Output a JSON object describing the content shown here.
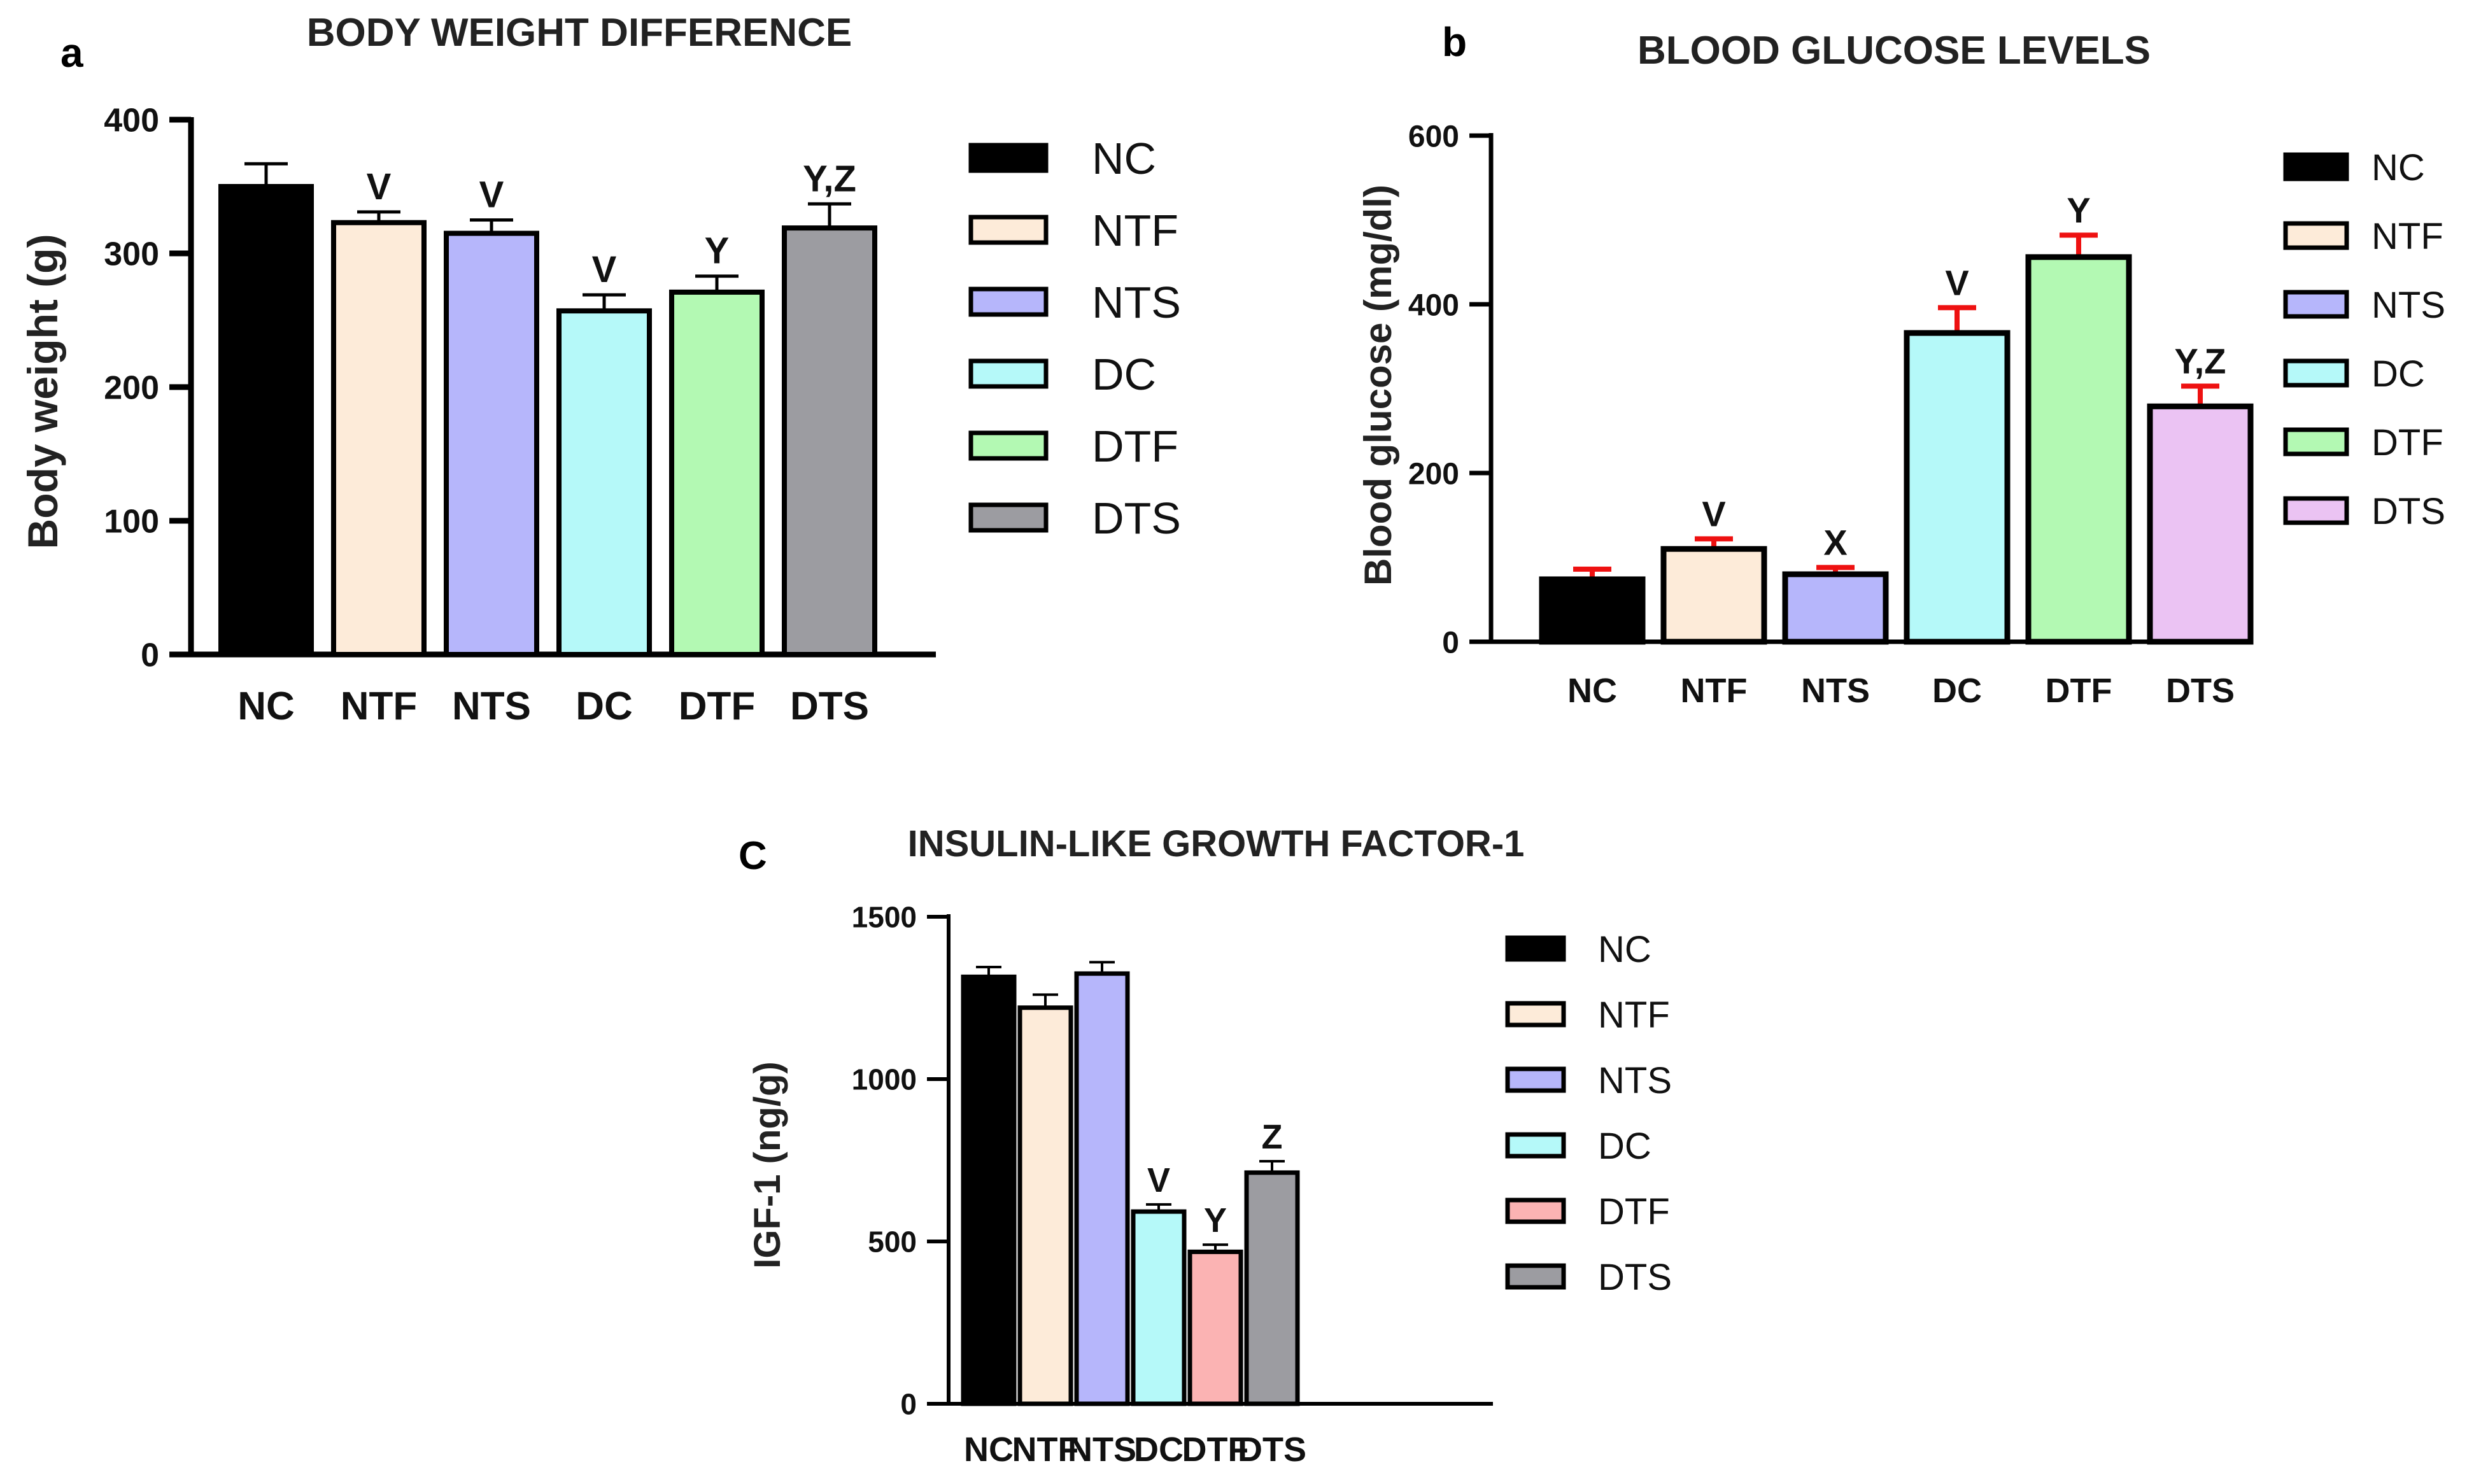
{
  "chart_data": [
    {
      "panel": "a",
      "type": "bar",
      "title": "BODY WEIGHT DIFFERENCE",
      "xlabel": "",
      "ylabel": "Body weight (g)",
      "ylim": [
        0,
        400
      ],
      "yticks": [
        0,
        100,
        200,
        300,
        400
      ],
      "categories": [
        "NC",
        "NTF",
        "NTS",
        "DC",
        "DTF",
        "DTS"
      ],
      "values": [
        350,
        323,
        315,
        257,
        271,
        319
      ],
      "errors": [
        17,
        8,
        10,
        12,
        12,
        18
      ],
      "annotations": [
        "",
        "V",
        "V",
        "V",
        "Y",
        "Y,Z"
      ],
      "colors": [
        "#000000",
        "#fdebd9",
        "#b6b6fb",
        "#b5f9f9",
        "#b3f9b3",
        "#9c9ca1"
      ],
      "error_color": "#000000",
      "legend": {
        "labels": [
          "NC",
          "NTF",
          "NTS",
          "DC",
          "DTF",
          "DTS"
        ],
        "placement": "right"
      },
      "grid": false
    },
    {
      "panel": "b",
      "type": "bar",
      "title": "BLOOD GLUCOSE LEVELS",
      "xlabel": "",
      "ylabel": "Blood glucose (mg/dl)",
      "ylim": [
        0,
        600
      ],
      "yticks": [
        0,
        200,
        400,
        600
      ],
      "categories": [
        "NC",
        "NTF",
        "NTS",
        "DC",
        "DTF",
        "DTS"
      ],
      "values": [
        74,
        110,
        80,
        366,
        456,
        279
      ],
      "errors": [
        12,
        12,
        8,
        30,
        26,
        24
      ],
      "annotations": [
        "",
        "V",
        "X",
        "V",
        "Y",
        "Y,Z"
      ],
      "colors": [
        "#000000",
        "#fdebd9",
        "#b6b6fb",
        "#b5f9f9",
        "#b3f9b3",
        "#ebc3f3"
      ],
      "error_color": "#ee1111",
      "legend": {
        "labels": [
          "NC",
          "NTF",
          "NTS",
          "DC",
          "DTF",
          "DTS"
        ],
        "placement": "right"
      },
      "grid": false
    },
    {
      "panel": "C",
      "type": "bar",
      "title": "INSULIN-LIKE GROWTH FACTOR-1",
      "xlabel": "",
      "ylabel": "IGF-1 (ng/g)",
      "ylim": [
        0,
        1500
      ],
      "yticks": [
        0,
        500,
        1000,
        1500
      ],
      "categories": [
        "NC",
        "NTF",
        "NTS",
        "DC",
        "DTF",
        "DTS"
      ],
      "values": [
        1315,
        1220,
        1325,
        592,
        468,
        712
      ],
      "errors": [
        30,
        40,
        35,
        22,
        22,
        35
      ],
      "annotations": [
        "",
        "",
        "",
        "V",
        "Y",
        "Z"
      ],
      "colors": [
        "#000000",
        "#fdebd9",
        "#b6b6fb",
        "#b5f9f9",
        "#fbb3b3",
        "#9c9ca1"
      ],
      "error_color": "#000000",
      "legend": {
        "labels": [
          "NC",
          "NTF",
          "NTS",
          "DC",
          "DTF",
          "DTS"
        ],
        "placement": "right"
      },
      "grid": false
    }
  ]
}
